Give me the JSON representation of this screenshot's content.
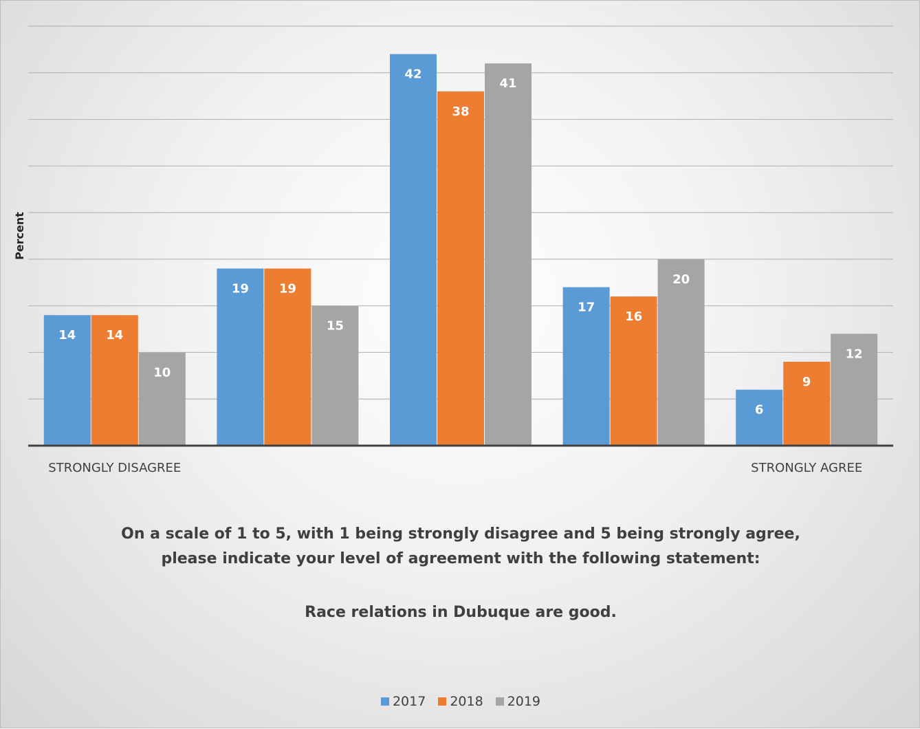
{
  "chart_data": {
    "type": "bar",
    "title": "",
    "ylabel": "Percent",
    "xlabel": "",
    "categories": [
      "STRONGLY DISAGREE",
      "",
      "",
      "",
      "STRONGLY AGREE"
    ],
    "series": [
      {
        "name": "2017",
        "values": [
          14,
          19,
          42,
          17,
          6
        ],
        "color": "#5b9bd5"
      },
      {
        "name": "2018",
        "values": [
          14,
          19,
          38,
          16,
          9
        ],
        "color": "#ed7d31"
      },
      {
        "name": "2019",
        "values": [
          10,
          15,
          41,
          20,
          12
        ],
        "color": "#a5a5a5"
      }
    ],
    "ylim": [
      0,
      45
    ],
    "gridlines": true,
    "gridline_step": 5,
    "show_y_tick_labels": false,
    "data_labels": true,
    "legend_position": "bottom"
  },
  "caption": {
    "line1": "On a scale of 1 to 5, with 1 being strongly disagree and 5 being strongly agree,",
    "line2": "please indicate your level of agreement with the following statement:",
    "statement": "Race relations in Dubuque are good."
  }
}
